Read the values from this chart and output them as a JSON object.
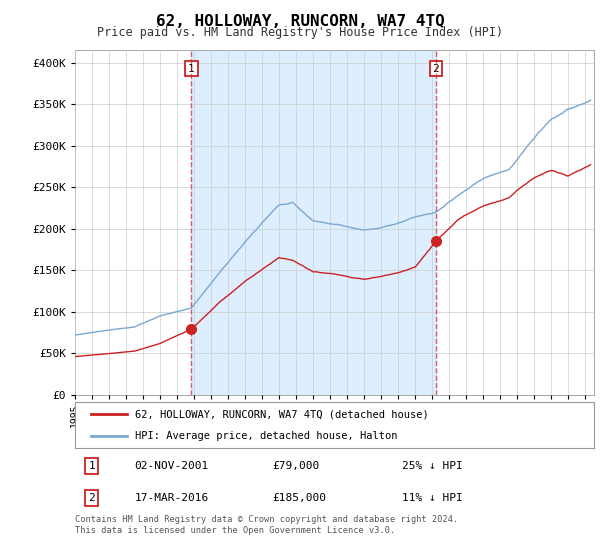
{
  "title": "62, HOLLOWAY, RUNCORN, WA7 4TQ",
  "subtitle": "Price paid vs. HM Land Registry's House Price Index (HPI)",
  "ylabel_ticks": [
    "£0",
    "£50K",
    "£100K",
    "£150K",
    "£200K",
    "£250K",
    "£300K",
    "£350K",
    "£400K"
  ],
  "ytick_values": [
    0,
    50000,
    100000,
    150000,
    200000,
    250000,
    300000,
    350000,
    400000
  ],
  "ylim": [
    0,
    415000
  ],
  "xlim_start": 1995.0,
  "xlim_end": 2025.5,
  "hpi_color": "#7aa8d2",
  "price_color": "#cc2222",
  "shade_color": "#ddeeff",
  "sale1_x": 2001.84,
  "sale1_y": 79000,
  "sale2_x": 2016.21,
  "sale2_y": 185000,
  "vline_color": "#cc2222",
  "legend_label1": "62, HOLLOWAY, RUNCORN, WA7 4TQ (detached house)",
  "legend_label2": "HPI: Average price, detached house, Halton",
  "table_rows": [
    [
      "1",
      "02-NOV-2001",
      "£79,000",
      "25% ↓ HPI"
    ],
    [
      "2",
      "17-MAR-2016",
      "£185,000",
      "11% ↓ HPI"
    ]
  ],
  "footnote": "Contains HM Land Registry data © Crown copyright and database right 2024.\nThis data is licensed under the Open Government Licence v3.0.",
  "bg_color": "#ffffff",
  "grid_color": "#cccccc"
}
